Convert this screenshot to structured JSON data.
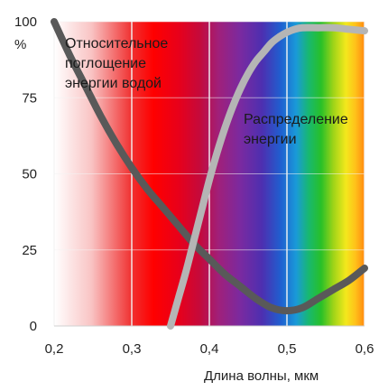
{
  "chart_data": {
    "type": "line",
    "xlabel": "Длина волны, мкм",
    "ylabel": "%",
    "xlim": [
      0.2,
      0.6
    ],
    "ylim": [
      0,
      100
    ],
    "x_ticks": [
      "0,2",
      "0,3",
      "0,4",
      "0,5",
      "0,6"
    ],
    "y_ticks": [
      "0",
      "25",
      "50",
      "75",
      "100"
    ],
    "grid": true,
    "background": "visible light spectrum gradient (ultraviolet to red)",
    "annotations": [
      {
        "lines": [
          "Относительное",
          "поглощение",
          "энергии водой"
        ]
      },
      {
        "lines": [
          "Распределение",
          "энергии"
        ]
      }
    ],
    "series": [
      {
        "name": "Относительное поглощение энергии водой",
        "color": "#595959",
        "x": [
          0.2,
          0.22,
          0.24,
          0.26,
          0.28,
          0.3,
          0.32,
          0.34,
          0.36,
          0.38,
          0.4,
          0.42,
          0.44,
          0.46,
          0.48,
          0.5,
          0.52,
          0.54,
          0.56,
          0.58,
          0.6
        ],
        "y": [
          100,
          89,
          79,
          69,
          60,
          52,
          45,
          39,
          33,
          27,
          22,
          17,
          13,
          9,
          6,
          5,
          6,
          9,
          12,
          15,
          19
        ]
      },
      {
        "name": "Распределение энергии",
        "color": "#b5b5b5",
        "x": [
          0.35,
          0.36,
          0.37,
          0.38,
          0.39,
          0.4,
          0.41,
          0.42,
          0.43,
          0.44,
          0.45,
          0.46,
          0.47,
          0.48,
          0.49,
          0.5,
          0.51,
          0.52,
          0.54,
          0.56,
          0.58,
          0.6
        ],
        "y": [
          0,
          9,
          18,
          28,
          38,
          48,
          57,
          65,
          72,
          78,
          83,
          87,
          90,
          93,
          95,
          96.5,
          97.5,
          98,
          98,
          98,
          97.5,
          97
        ]
      }
    ]
  }
}
